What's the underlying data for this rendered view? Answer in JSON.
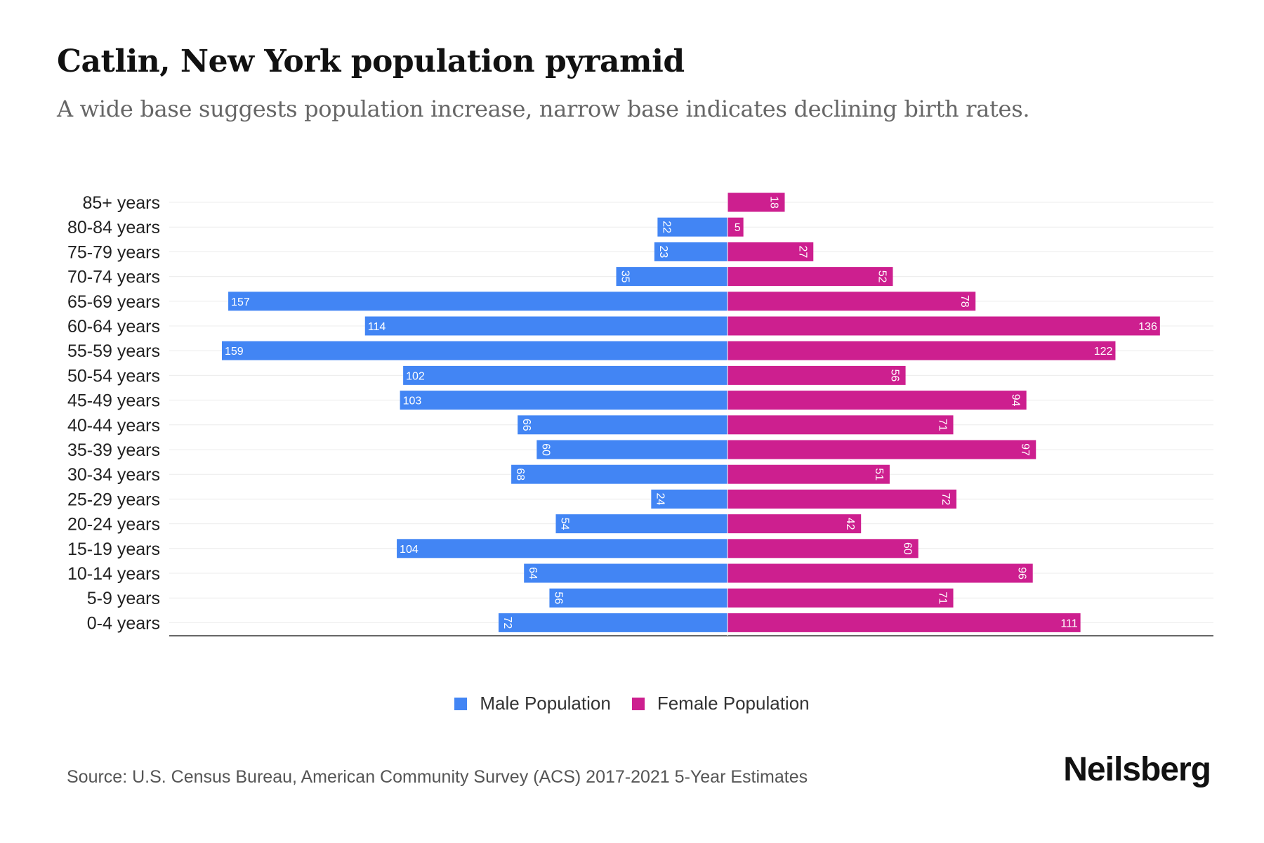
{
  "title": "Catlin, New York population pyramid",
  "subtitle": "A wide base suggests population increase, narrow base indicates declining birth rates.",
  "source": "Source: U.S. Census Bureau, American Community Survey (ACS) 2017-2021 5-Year Estimates",
  "logo": "Neilsberg",
  "chart_data": {
    "type": "bar",
    "orientation": "horizontal-pyramid",
    "categories": [
      "85+ years",
      "80-84 years",
      "75-79 years",
      "70-74 years",
      "65-69 years",
      "60-64 years",
      "55-59 years",
      "50-54 years",
      "45-49 years",
      "40-44 years",
      "35-39 years",
      "30-34 years",
      "25-29 years",
      "20-24 years",
      "15-19 years",
      "10-14 years",
      "5-9 years",
      "0-4 years"
    ],
    "series": [
      {
        "name": "Male Population",
        "color": "#4285f4",
        "values": [
          0,
          22,
          23,
          35,
          157,
          114,
          159,
          102,
          103,
          66,
          60,
          68,
          24,
          54,
          104,
          64,
          56,
          72
        ]
      },
      {
        "name": "Female Population",
        "color": "#cd1f8f",
        "values": [
          18,
          5,
          27,
          52,
          78,
          136,
          122,
          56,
          94,
          71,
          97,
          51,
          72,
          42,
          60,
          96,
          71,
          111
        ]
      }
    ],
    "xlim": [
      -159,
      159
    ],
    "grid": true,
    "legend_position": "bottom"
  }
}
